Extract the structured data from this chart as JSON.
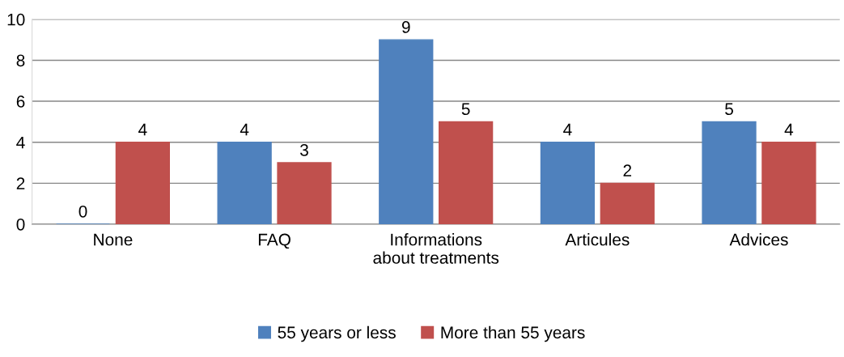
{
  "chart_data": {
    "type": "bar",
    "categories": [
      "None",
      "FAQ",
      "Informations\nabout treatments",
      "Articules",
      "Advices"
    ],
    "series": [
      {
        "name": "55 years or less",
        "color": "#4f81bd",
        "values": [
          0,
          4,
          9,
          4,
          5
        ]
      },
      {
        "name": "More than 55 years",
        "color": "#c0504d",
        "values": [
          4,
          3,
          5,
          2,
          4
        ]
      }
    ],
    "ylim": [
      0,
      10
    ],
    "yticks": [
      0,
      2,
      4,
      6,
      8,
      10
    ],
    "grid": "y",
    "legend": "bottom",
    "data_labels": true
  }
}
